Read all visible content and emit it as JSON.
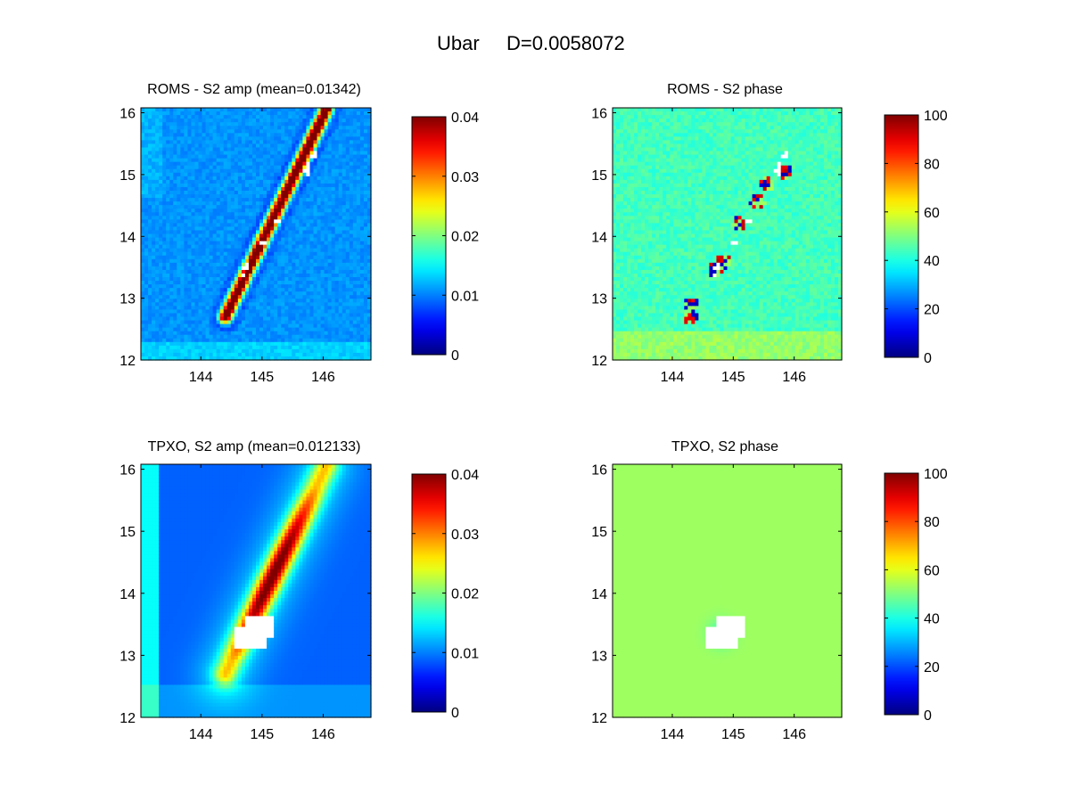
{
  "figure": {
    "title": "Ubar",
    "d_label": "D=0.0058072"
  },
  "chart_data": [
    {
      "type": "heatmap",
      "title": "ROMS - S2 amp (mean=0.01342)",
      "field": "amp",
      "source": "ROMS",
      "x_ticks": [
        "144",
        "145",
        "146"
      ],
      "x_tick_values": [
        144,
        145,
        146
      ],
      "y_ticks": [
        "12",
        "13",
        "14",
        "15",
        "16"
      ],
      "y_tick_values": [
        12,
        13,
        14,
        15,
        16
      ],
      "xlim": [
        143.02,
        146.78
      ],
      "ylim": [
        12,
        16.08
      ],
      "colorbar": {
        "ticks": [
          "0",
          "0.01",
          "0.02",
          "0.03",
          "0.04"
        ],
        "values": [
          0,
          0.01,
          0.02,
          0.03,
          0.04
        ],
        "range": [
          0,
          0.04
        ],
        "colormap": "jet"
      },
      "mean": 0.01342
    },
    {
      "type": "heatmap",
      "title": "ROMS - S2 phase",
      "field": "phase",
      "source": "ROMS",
      "x_ticks": [
        "144",
        "145",
        "146"
      ],
      "x_tick_values": [
        144,
        145,
        146
      ],
      "y_ticks": [
        "12",
        "13",
        "14",
        "15",
        "16"
      ],
      "y_tick_values": [
        12,
        13,
        14,
        15,
        16
      ],
      "xlim": [
        143.02,
        146.78
      ],
      "ylim": [
        12,
        16.08
      ],
      "colorbar": {
        "ticks": [
          "0",
          "20",
          "40",
          "60",
          "80",
          "100"
        ],
        "values": [
          0,
          20,
          40,
          60,
          80,
          100
        ],
        "range": [
          0,
          100
        ],
        "colormap": "jet"
      }
    },
    {
      "type": "heatmap",
      "title": "TPXO, S2 amp (mean=0.012133)",
      "field": "amp",
      "source": "TPXO",
      "x_ticks": [
        "144",
        "145",
        "146"
      ],
      "x_tick_values": [
        144,
        145,
        146
      ],
      "y_ticks": [
        "12",
        "13",
        "14",
        "15",
        "16"
      ],
      "y_tick_values": [
        12,
        13,
        14,
        15,
        16
      ],
      "xlim": [
        143.02,
        146.78
      ],
      "ylim": [
        12,
        16.08
      ],
      "colorbar": {
        "ticks": [
          "0",
          "0.01",
          "0.02",
          "0.03",
          "0.04"
        ],
        "values": [
          0,
          0.01,
          0.02,
          0.03,
          0.04
        ],
        "range": [
          0,
          0.04
        ],
        "colormap": "jet"
      },
      "mean": 0.012133
    },
    {
      "type": "heatmap",
      "title": "TPXO, S2 phase",
      "field": "phase",
      "source": "TPXO",
      "x_ticks": [
        "144",
        "145",
        "146"
      ],
      "x_tick_values": [
        144,
        145,
        146
      ],
      "y_ticks": [
        "12",
        "13",
        "14",
        "15",
        "16"
      ],
      "y_tick_values": [
        12,
        13,
        14,
        15,
        16
      ],
      "xlim": [
        143.02,
        146.78
      ],
      "ylim": [
        12,
        16.08
      ],
      "colorbar": {
        "ticks": [
          "0",
          "20",
          "40",
          "60",
          "80",
          "100"
        ],
        "values": [
          0,
          20,
          40,
          60,
          80,
          100
        ],
        "range": [
          0,
          100
        ],
        "colormap": "jet"
      }
    }
  ]
}
